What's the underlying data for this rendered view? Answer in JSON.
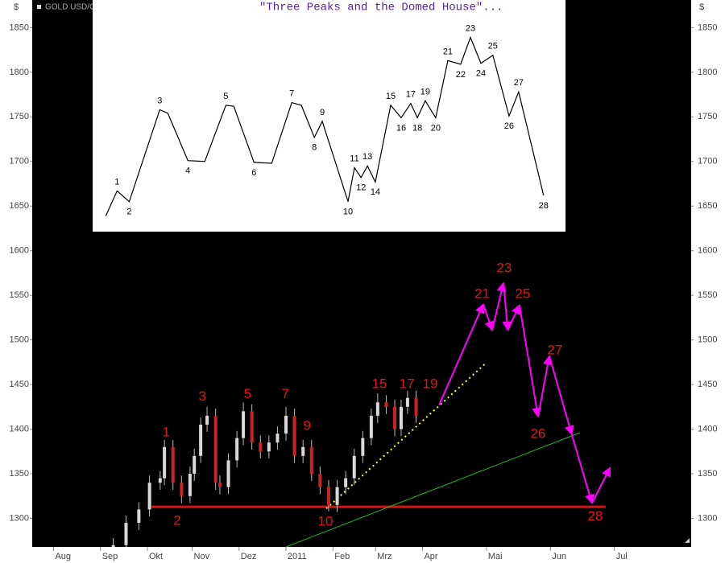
{
  "chart_data": {
    "type": "candlestick",
    "instrument": "GOLD USD/OZ",
    "y_unit": "$",
    "ylim": [
      1268,
      1881
    ],
    "yticks": [
      1300,
      1350,
      1400,
      1450,
      1500,
      1550,
      1600,
      1650,
      1700,
      1750,
      1800,
      1850
    ],
    "xlim": [
      -10,
      299
    ],
    "xticks": [
      {
        "value": 0,
        "label": "Aug"
      },
      {
        "value": 22,
        "label": "Sep"
      },
      {
        "value": 44,
        "label": "Okt"
      },
      {
        "value": 65,
        "label": "Nov"
      },
      {
        "value": 87,
        "label": "Dez"
      },
      {
        "value": 109,
        "label": "2011"
      },
      {
        "value": 131,
        "label": "Feb"
      },
      {
        "value": 151,
        "label": "Mrz"
      },
      {
        "value": 173,
        "label": "Apr"
      },
      {
        "value": 203,
        "label": "Mai"
      },
      {
        "value": 233,
        "label": "Jun"
      },
      {
        "value": 263,
        "label": "Jul"
      }
    ],
    "up_color": "#d8d8d8",
    "down_color": "#cc2222",
    "x": [
      28,
      34,
      40,
      45,
      50,
      52,
      56,
      60,
      64,
      66,
      69,
      72,
      76,
      78,
      82,
      86,
      89,
      93,
      97,
      101,
      105,
      109,
      113,
      117,
      121,
      125,
      129,
      133,
      137,
      141,
      145,
      149,
      152,
      156,
      160,
      163,
      166,
      170
    ],
    "open": [
      1262,
      1270,
      1295,
      1310,
      1340,
      1345,
      1380,
      1340,
      1325,
      1350,
      1370,
      1405,
      1415,
      1340,
      1335,
      1365,
      1390,
      1420,
      1385,
      1375,
      1385,
      1395,
      1415,
      1370,
      1380,
      1350,
      1335,
      1315,
      1335,
      1345,
      1370,
      1390,
      1415,
      1430,
      1425,
      1400,
      1425,
      1435
    ],
    "high": [
      1278,
      1303,
      1318,
      1348,
      1353,
      1388,
      1388,
      1348,
      1358,
      1378,
      1413,
      1425,
      1423,
      1348,
      1373,
      1398,
      1430,
      1428,
      1393,
      1393,
      1403,
      1425,
      1423,
      1388,
      1388,
      1358,
      1343,
      1343,
      1353,
      1378,
      1398,
      1423,
      1440,
      1438,
      1433,
      1433,
      1443,
      1443
    ],
    "low": [
      1258,
      1262,
      1287,
      1302,
      1332,
      1337,
      1332,
      1317,
      1317,
      1342,
      1362,
      1397,
      1332,
      1327,
      1327,
      1357,
      1382,
      1377,
      1367,
      1367,
      1377,
      1387,
      1362,
      1362,
      1342,
      1327,
      1308,
      1307,
      1327,
      1337,
      1362,
      1382,
      1407,
      1417,
      1392,
      1392,
      1417,
      1407
    ],
    "close": [
      1270,
      1295,
      1310,
      1340,
      1345,
      1380,
      1340,
      1325,
      1350,
      1370,
      1405,
      1415,
      1340,
      1335,
      1365,
      1390,
      1420,
      1385,
      1375,
      1385,
      1395,
      1415,
      1370,
      1380,
      1350,
      1335,
      1315,
      1335,
      1345,
      1370,
      1390,
      1415,
      1430,
      1425,
      1400,
      1425,
      1435,
      1415
    ],
    "wave_labels": [
      {
        "text": "1",
        "x": 52.8,
        "y": 1396
      },
      {
        "text": "2",
        "x": 58,
        "y": 1297
      },
      {
        "text": "3",
        "x": 69.8,
        "y": 1436
      },
      {
        "text": "5",
        "x": 91,
        "y": 1439
      },
      {
        "text": "7",
        "x": 108.7,
        "y": 1439
      },
      {
        "text": "9",
        "x": 118.9,
        "y": 1403
      },
      {
        "text": "10",
        "x": 127.5,
        "y": 1296
      },
      {
        "text": "15",
        "x": 152.8,
        "y": 1450
      },
      {
        "text": "17",
        "x": 165.7,
        "y": 1450
      },
      {
        "text": "19",
        "x": 176.6,
        "y": 1450
      },
      {
        "text": "21",
        "x": 201,
        "y": 1551
      },
      {
        "text": "23",
        "x": 211.3,
        "y": 1580
      },
      {
        "text": "25",
        "x": 220,
        "y": 1551
      },
      {
        "text": "26",
        "x": 227.2,
        "y": 1394
      },
      {
        "text": "27",
        "x": 235.1,
        "y": 1488
      },
      {
        "text": "28",
        "x": 254,
        "y": 1302
      }
    ],
    "label_color": "#ee1111",
    "projection": {
      "color": "#ff00ff",
      "x": [
        180.8,
        201.5,
        205.7,
        211,
        213,
        218.5,
        227.2,
        232.5,
        243,
        252.5,
        261
      ],
      "values": [
        1427,
        1540,
        1511,
        1564,
        1511,
        1539,
        1414,
        1482,
        1394,
        1317,
        1357
      ]
    },
    "lines": [
      {
        "name": "support",
        "color": "#dd1111",
        "width": 3,
        "x": [
          46,
          258.9
        ],
        "values": [
          1313,
          1313
        ]
      },
      {
        "name": "trend",
        "color": "#22bb22",
        "width": 1,
        "x": [
          109,
          246.8
        ],
        "values": [
          1268,
          1396
        ]
      },
      {
        "name": "channel",
        "color": "#ffff33",
        "width": 2,
        "dash": true,
        "x": [
          127.9,
          202.3
        ],
        "values": [
          1311,
          1473
        ]
      }
    ],
    "inset": {
      "title": "\"Three Peaks and the Domed House\"...",
      "title_color": "#5522aa",
      "x": [
        24.5,
        29.8,
        35.5,
        49.8,
        53.6,
        63,
        70.9,
        80.8,
        84.5,
        94,
        102.3,
        111.7,
        116.2,
        122.3,
        126,
        138.1,
        141.1,
        144.2,
        147.2,
        150.9,
        158.1,
        163,
        167.5,
        170.6,
        174.3,
        179.2,
        184.9,
        190.9,
        195.5,
        200.4,
        206,
        213.6,
        218.1,
        229.8
      ],
      "values": [
        1639,
        1667,
        1655,
        1758,
        1754,
        1701,
        1700,
        1763,
        1762,
        1699,
        1698,
        1766,
        1763,
        1727,
        1745,
        1655,
        1693,
        1682,
        1695,
        1677,
        1763,
        1749,
        1765,
        1749,
        1768,
        1749,
        1813,
        1809,
        1839,
        1810,
        1819,
        1751,
        1778,
        1662
      ],
      "point_labels": [
        null,
        "1",
        "2",
        "3",
        null,
        "4",
        null,
        "5",
        null,
        "6",
        null,
        "7",
        null,
        "8",
        "9",
        "10",
        "11",
        "12",
        "13",
        "14",
        "15",
        "16",
        "17",
        "18",
        "19",
        "20",
        "21",
        "22",
        "23",
        "24",
        "25",
        "26",
        "27",
        "28"
      ]
    }
  }
}
